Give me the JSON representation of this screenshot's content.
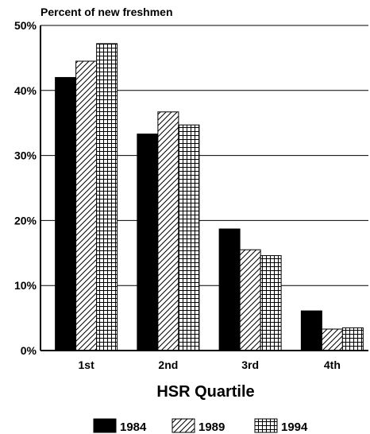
{
  "chart_data": {
    "type": "bar",
    "ylabel": "Percent of new freshmen",
    "xlabel": "HSR Quartile",
    "categories": [
      "1st",
      "2nd",
      "3rd",
      "4th"
    ],
    "ylim": [
      0,
      50
    ],
    "y_ticks": [
      0,
      10,
      20,
      30,
      40,
      50
    ],
    "y_tick_labels": [
      "0%",
      "10%",
      "20%",
      "30%",
      "40%",
      "50%"
    ],
    "grid": true,
    "legend_position": "bottom",
    "series": [
      {
        "name": "1984",
        "pattern": "solid",
        "color": "#000000",
        "values": [
          42.0,
          33.3,
          18.7,
          6.1
        ]
      },
      {
        "name": "1989",
        "pattern": "diagonal-hatch",
        "color": "#000000",
        "values": [
          44.5,
          36.7,
          15.5,
          3.3
        ]
      },
      {
        "name": "1994",
        "pattern": "grid-hatch",
        "color": "#000000",
        "values": [
          47.2,
          34.7,
          14.6,
          3.5
        ]
      }
    ]
  }
}
